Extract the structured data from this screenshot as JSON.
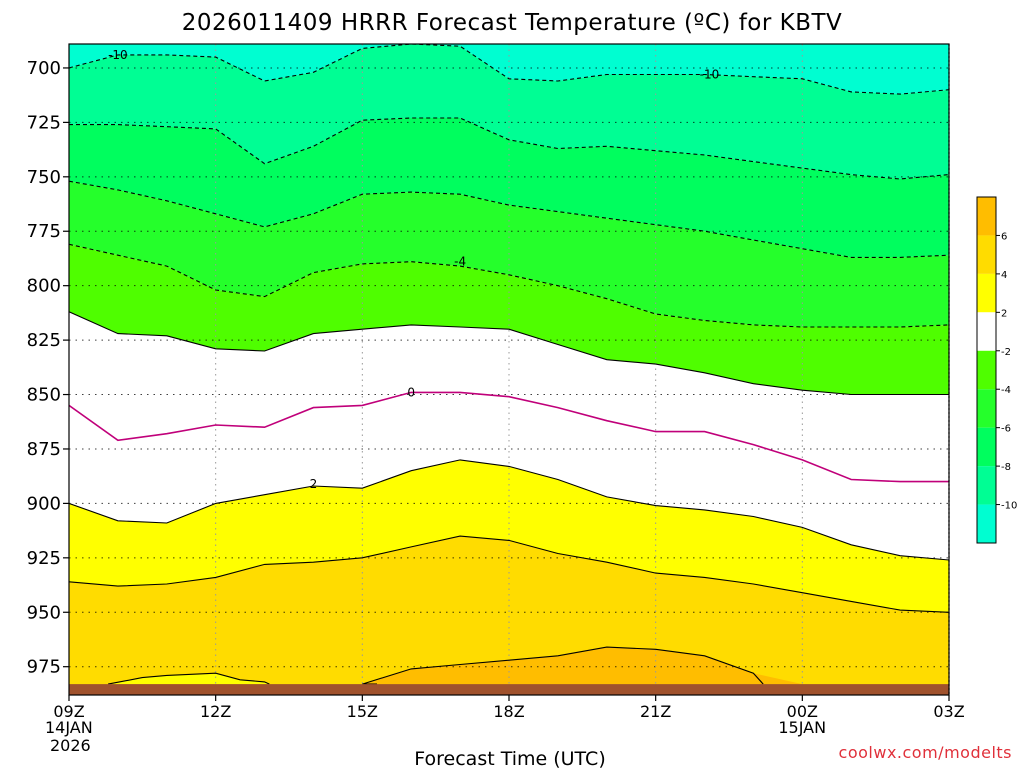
{
  "chart_data": {
    "type": "filled-contour",
    "title": "2026011409 HRRR Forecast Temperature (ºC) for KBTV",
    "xlabel": "Forecast Time (UTC)",
    "ylabel": "",
    "credit": "coolwx.com/modelts",
    "x_hours": [
      0,
      1,
      2,
      3,
      4,
      5,
      6,
      7,
      8,
      9,
      10,
      11,
      12,
      13,
      14,
      15,
      16,
      17,
      18
    ],
    "xlim": [
      0,
      18
    ],
    "ylim_hPa": [
      988,
      689
    ],
    "surface_hPa": 983,
    "x_ticks": [
      {
        "hour": 0,
        "label": "09Z",
        "sub1": "14JAN",
        "sub2": "2026"
      },
      {
        "hour": 3,
        "label": "12Z",
        "sub1": "",
        "sub2": ""
      },
      {
        "hour": 6,
        "label": "15Z",
        "sub1": "",
        "sub2": ""
      },
      {
        "hour": 9,
        "label": "18Z",
        "sub1": "",
        "sub2": ""
      },
      {
        "hour": 12,
        "label": "21Z",
        "sub1": "",
        "sub2": ""
      },
      {
        "hour": 15,
        "label": "00Z",
        "sub1": "15JAN",
        "sub2": ""
      },
      {
        "hour": 18,
        "label": "03Z",
        "sub1": "",
        "sub2": ""
      }
    ],
    "y_ticks": [
      700,
      725,
      750,
      775,
      800,
      825,
      850,
      875,
      900,
      925,
      950,
      975
    ],
    "contours": [
      {
        "level": -10,
        "dashed": true,
        "color": "#000000",
        "p": [
          700,
          694,
          694,
          695,
          706,
          702,
          691,
          689,
          690,
          705,
          706,
          703,
          703,
          703,
          704,
          705,
          711,
          712,
          710
        ]
      },
      {
        "level": -8,
        "dashed": true,
        "color": "#000000",
        "p": [
          726,
          726,
          727,
          728,
          744,
          736,
          724,
          723,
          723,
          733,
          737,
          736,
          738,
          740,
          743,
          746,
          749,
          751,
          749
        ]
      },
      {
        "level": -6,
        "dashed": true,
        "color": "#000000",
        "p": [
          752,
          756,
          761,
          767,
          773,
          767,
          758,
          757,
          758,
          763,
          766,
          769,
          772,
          775,
          779,
          783,
          787,
          787,
          786
        ]
      },
      {
        "level": -4,
        "dashed": true,
        "color": "#000000",
        "p": [
          781,
          786,
          791,
          802,
          805,
          794,
          790,
          789,
          791,
          795,
          800,
          806,
          813,
          816,
          818,
          819,
          819,
          819,
          818
        ]
      },
      {
        "level": -2,
        "dashed": false,
        "color": "#000000",
        "p": [
          812,
          822,
          823,
          829,
          830,
          822,
          820,
          818,
          819,
          820,
          827,
          834,
          836,
          840,
          845,
          848,
          850,
          850,
          850
        ]
      },
      {
        "level": 0,
        "dashed": false,
        "color": "#c0007a",
        "p": [
          855,
          871,
          868,
          864,
          865,
          856,
          855,
          849,
          849,
          851,
          856,
          862,
          867,
          867,
          873,
          880,
          889,
          890,
          890
        ]
      },
      {
        "level": 2,
        "dashed": false,
        "color": "#000000",
        "p": [
          900,
          908,
          909,
          900,
          896,
          892,
          893,
          885,
          880,
          883,
          889,
          897,
          901,
          903,
          906,
          911,
          919,
          924,
          926
        ]
      },
      {
        "level": 4,
        "dashed": false,
        "color": "#000000",
        "p": [
          936,
          938,
          937,
          934,
          928,
          927,
          925,
          920,
          915,
          917,
          923,
          927,
          932,
          934,
          937,
          941,
          945,
          949,
          950
        ]
      },
      {
        "level": 6,
        "dashed": false,
        "color": "#000000",
        "note": "closed pocket near surface",
        "p": [
          983,
          983,
          983,
          983,
          983,
          983,
          983,
          976,
          974,
          972,
          970,
          966,
          967,
          970,
          978,
          983,
          983,
          983,
          983
        ]
      }
    ],
    "contour_labels": [
      {
        "text": "-10",
        "level": -10,
        "hour": 1.0,
        "p": 694
      },
      {
        "text": "-10",
        "level": -10,
        "hour": 13.1,
        "p": 703
      },
      {
        "text": "-4",
        "level": -4,
        "hour": 8.0,
        "p": 789
      },
      {
        "text": "0",
        "level": 0,
        "hour": 7.0,
        "p": 849
      },
      {
        "text": "2",
        "level": 2,
        "hour": 5.0,
        "p": 891
      }
    ],
    "small_pocket_4C": [
      [
        0.8,
        983
      ],
      [
        1.5,
        980
      ],
      [
        2.0,
        979
      ],
      [
        3.0,
        978
      ],
      [
        3.5,
        981
      ],
      [
        4.0,
        982
      ],
      [
        4.1,
        983
      ]
    ],
    "bands": [
      {
        "min": 6,
        "max": 8,
        "color": "#ffbd00"
      },
      {
        "min": 4,
        "max": 6,
        "color": "#ffdc00"
      },
      {
        "min": 2,
        "max": 4,
        "color": "#ffff00"
      },
      {
        "min": -2,
        "max": 2,
        "color": "#ffffff"
      },
      {
        "min": -4,
        "max": -2,
        "color": "#4ffe00"
      },
      {
        "min": -6,
        "max": -4,
        "color": "#25ff2b"
      },
      {
        "min": -8,
        "max": -6,
        "color": "#00fe5e"
      },
      {
        "min": -10,
        "max": -8,
        "color": "#00fe94"
      },
      {
        "min": -12,
        "max": -10,
        "color": "#00fed1"
      }
    ],
    "colorbar": {
      "labels": [
        "6",
        "4",
        "2",
        "-2",
        "-4",
        "-6",
        "-8",
        "-10"
      ],
      "colors": [
        "#ffbd00",
        "#ffdc00",
        "#ffff00",
        "#ffffff",
        "#4ffe00",
        "#25ff2b",
        "#00fe5e",
        "#00fe94",
        "#00fed1"
      ]
    },
    "ground_color": "#a0522d",
    "grid": "dotted"
  }
}
